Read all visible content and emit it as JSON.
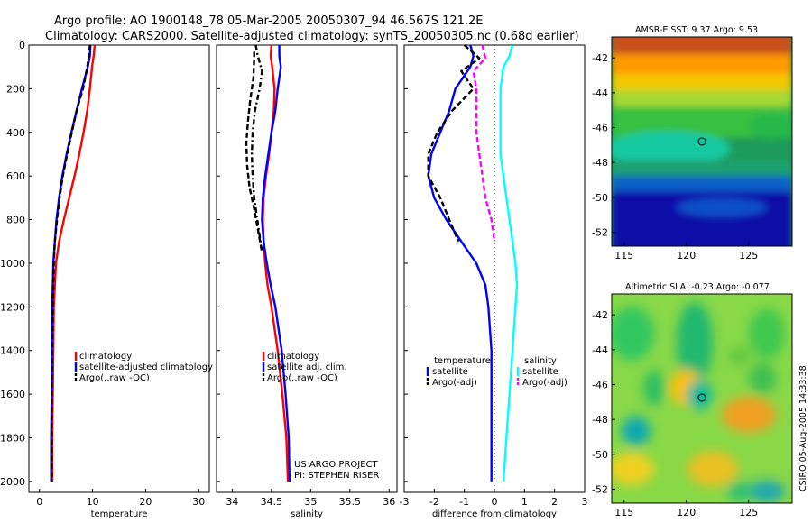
{
  "title_line1": "Argo profile: AO 1900148_78 05-Mar-2005 20050307_94 46.567S 121.2E",
  "title_line2": "Climatology: CARS2000. Satellite-adjusted climatology: synTS_20050305.nc (0.68d earlier)",
  "footer_credit": "US ARGO PROJECT",
  "footer_pi": "PI: STEPHEN RISER",
  "stamp": "CSIRO 05-Aug-2005 14:33:38",
  "colors": {
    "climatology": "#ff0000",
    "satellite": "#0000ff",
    "argo": "#000000",
    "sal_satellite": "#00ffff",
    "sal_argo": "#ff00ff"
  },
  "chart_data": [
    {
      "type": "line",
      "xlabel": "temperature",
      "xlim": [
        -2,
        32
      ],
      "ylim": [
        0,
        2050
      ],
      "y_reversed": true,
      "xticks": [
        0,
        10,
        20,
        30
      ],
      "yticks": [
        0,
        200,
        400,
        600,
        800,
        1000,
        1200,
        1400,
        1600,
        1800,
        2000
      ],
      "legend": [
        "climatology",
        "satellite-adjusted climatology",
        "Argo(..raw -QC)"
      ],
      "legend_position": "lower-right",
      "series": [
        {
          "name": "climatology",
          "color": "#ff0000",
          "dash": "solid",
          "x": [
            10.4,
            10.2,
            9.9,
            9.5,
            9.0,
            8.3,
            7.5,
            6.6,
            5.6,
            4.6,
            3.7,
            3.1,
            2.9,
            2.7,
            2.6,
            2.5,
            2.4,
            2.4
          ],
          "y": [
            0,
            50,
            100,
            200,
            300,
            400,
            500,
            600,
            700,
            800,
            900,
            1000,
            1100,
            1200,
            1400,
            1600,
            1800,
            2000
          ]
        },
        {
          "name": "satellite-adjusted climatology",
          "color": "#0000ff",
          "dash": "solid",
          "x": [
            9.6,
            9.5,
            9.1,
            8.0,
            7.0,
            6.0,
            5.1,
            4.3,
            3.7,
            3.2,
            2.9,
            2.6,
            2.5,
            2.4,
            2.3,
            2.3,
            2.2,
            2.2
          ],
          "y": [
            0,
            50,
            100,
            200,
            300,
            400,
            500,
            600,
            700,
            800,
            900,
            1000,
            1100,
            1200,
            1400,
            1600,
            1800,
            2000
          ]
        },
        {
          "name": "Argo(..raw -QC)",
          "color": "#000000",
          "dash": "dash",
          "x": [
            9.5,
            9.3,
            9.0,
            8.2,
            7.0,
            6.1,
            5.2,
            4.4,
            3.8,
            3.3,
            2.9,
            2.7,
            2.6,
            2.5,
            2.4,
            2.3,
            2.3,
            2.3
          ],
          "y": [
            0,
            50,
            100,
            200,
            300,
            400,
            500,
            600,
            700,
            800,
            900,
            1000,
            1100,
            1200,
            1400,
            1600,
            1800,
            2000
          ]
        }
      ]
    },
    {
      "type": "line",
      "xlabel": "salinity",
      "xlim": [
        33.8,
        36.1
      ],
      "ylim": [
        0,
        2050
      ],
      "y_reversed": true,
      "xticks": [
        34,
        34.5,
        35,
        35.5,
        36
      ],
      "xticklabels": [
        "34",
        "34.5",
        "35",
        "35.5",
        "36"
      ],
      "legend": [
        "climatology",
        "satellite adj. clim.",
        "Argo(..raw -QC)"
      ],
      "legend_position": "lower-right",
      "series": [
        {
          "name": "climatology",
          "color": "#ff0000",
          "dash": "solid",
          "x": [
            34.5,
            34.49,
            34.51,
            34.54,
            34.53,
            34.5,
            34.47,
            34.43,
            34.4,
            34.39,
            34.4,
            34.42,
            34.45,
            34.5,
            34.58,
            34.64,
            34.69,
            34.71
          ],
          "y": [
            0,
            50,
            100,
            200,
            300,
            400,
            500,
            600,
            700,
            800,
            900,
            1000,
            1100,
            1200,
            1400,
            1600,
            1800,
            2000
          ]
        },
        {
          "name": "satellite adj. clim.",
          "color": "#0000ff",
          "dash": "solid",
          "x": [
            34.6,
            34.6,
            34.62,
            34.58,
            34.55,
            34.5,
            34.46,
            34.42,
            34.39,
            34.38,
            34.4,
            34.44,
            34.49,
            34.55,
            34.63,
            34.68,
            34.72,
            34.73
          ],
          "y": [
            0,
            50,
            100,
            200,
            300,
            400,
            500,
            600,
            700,
            800,
            900,
            1000,
            1100,
            1200,
            1400,
            1600,
            1800,
            2000
          ]
        },
        {
          "name": "Argo(..raw -QC)",
          "color": "#000000",
          "dash": "dashdot",
          "x": [
            34.3,
            34.32,
            34.38,
            34.35,
            34.29,
            34.26,
            34.25,
            34.26,
            34.28,
            34.32,
            34.38
          ],
          "y": [
            0,
            40,
            120,
            200,
            300,
            400,
            500,
            600,
            700,
            800,
            950
          ]
        },
        {
          "name": "Argo(-adj)",
          "color": "#000000",
          "dash": "dash",
          "x": [
            34.28,
            34.28,
            34.27,
            34.23,
            34.2,
            34.18,
            34.19,
            34.22,
            34.28,
            34.33,
            34.38
          ],
          "y": [
            30,
            60,
            150,
            250,
            350,
            450,
            550,
            650,
            750,
            850,
            950
          ]
        }
      ]
    },
    {
      "type": "line",
      "xlabel": "difference from climatology",
      "xlim": [
        -3,
        3
      ],
      "ylim": [
        0,
        2050
      ],
      "y_reversed": true,
      "xticks": [
        -3,
        -2,
        -1,
        0,
        1,
        2,
        3
      ],
      "zero_line": true,
      "legend_left": [
        "temperature",
        "satellite",
        "Argo(-adj)"
      ],
      "legend_right": [
        "salinity",
        "satellite",
        "Argo(-adj)"
      ],
      "legend_position": "lower",
      "series": [
        {
          "name": "satellite",
          "color": "#0000ff",
          "dash": "solid",
          "x": [
            -0.8,
            -0.7,
            -0.8,
            -1.3,
            -1.5,
            -1.8,
            -2.1,
            -2.2,
            -2.0,
            -1.6,
            -1.1,
            -0.6,
            -0.3,
            -0.2,
            -0.1,
            -0.1,
            -0.1,
            -0.1
          ],
          "y": [
            0,
            50,
            100,
            200,
            300,
            400,
            500,
            600,
            700,
            800,
            900,
            1000,
            1100,
            1200,
            1400,
            1600,
            1800,
            2000
          ]
        },
        {
          "name": "Argo(-adj)",
          "color": "#000000",
          "dash": "dash",
          "x": [
            -1.0,
            -0.5,
            -1.1,
            -0.7,
            -1.4,
            -1.9,
            -2.2,
            -2.2,
            -1.8,
            -1.5,
            -1.2
          ],
          "y": [
            0,
            60,
            120,
            200,
            300,
            400,
            500,
            600,
            700,
            800,
            900
          ]
        },
        {
          "name": "satellite",
          "color": "#00ffff",
          "dash": "solid",
          "x": [
            0.6,
            0.5,
            0.3,
            0.2,
            0.2,
            0.2,
            0.2,
            0.3,
            0.4,
            0.5,
            0.6,
            0.7,
            0.75,
            0.7,
            0.6,
            0.5,
            0.4,
            0.3
          ],
          "y": [
            0,
            50,
            100,
            200,
            300,
            400,
            500,
            600,
            700,
            800,
            900,
            1000,
            1100,
            1200,
            1400,
            1600,
            1800,
            2000
          ]
        },
        {
          "name": "Argo(-adj)",
          "color": "#ff00ff",
          "dash": "dash",
          "x": [
            -0.4,
            -0.3,
            -0.7,
            -0.6,
            -0.6,
            -0.6,
            -0.5,
            -0.4,
            -0.3,
            -0.1,
            0.0
          ],
          "y": [
            0,
            60,
            120,
            200,
            300,
            400,
            500,
            600,
            700,
            800,
            900
          ]
        }
      ]
    },
    {
      "type": "heatmap",
      "title": "AMSR-E SST: 9.37 Argo: 9.53",
      "xlim": [
        114,
        128.5
      ],
      "ylim": [
        -52.8,
        -40.8
      ],
      "xticks": [
        115,
        120,
        125
      ],
      "yticks": [
        -42,
        -44,
        -46,
        -48,
        -50,
        -52
      ],
      "marker": {
        "lon": 121.2,
        "lat": -46.567
      }
    },
    {
      "type": "heatmap",
      "title": "Altimetric SLA: -0.23 Argo: -0.077",
      "xlim": [
        114,
        128.5
      ],
      "ylim": [
        -52.8,
        -40.8
      ],
      "xticks": [
        115,
        120,
        125
      ],
      "yticks": [
        -42,
        -44,
        -46,
        -48,
        -50,
        -52
      ],
      "marker": {
        "lon": 121.2,
        "lat": -46.567
      }
    }
  ]
}
